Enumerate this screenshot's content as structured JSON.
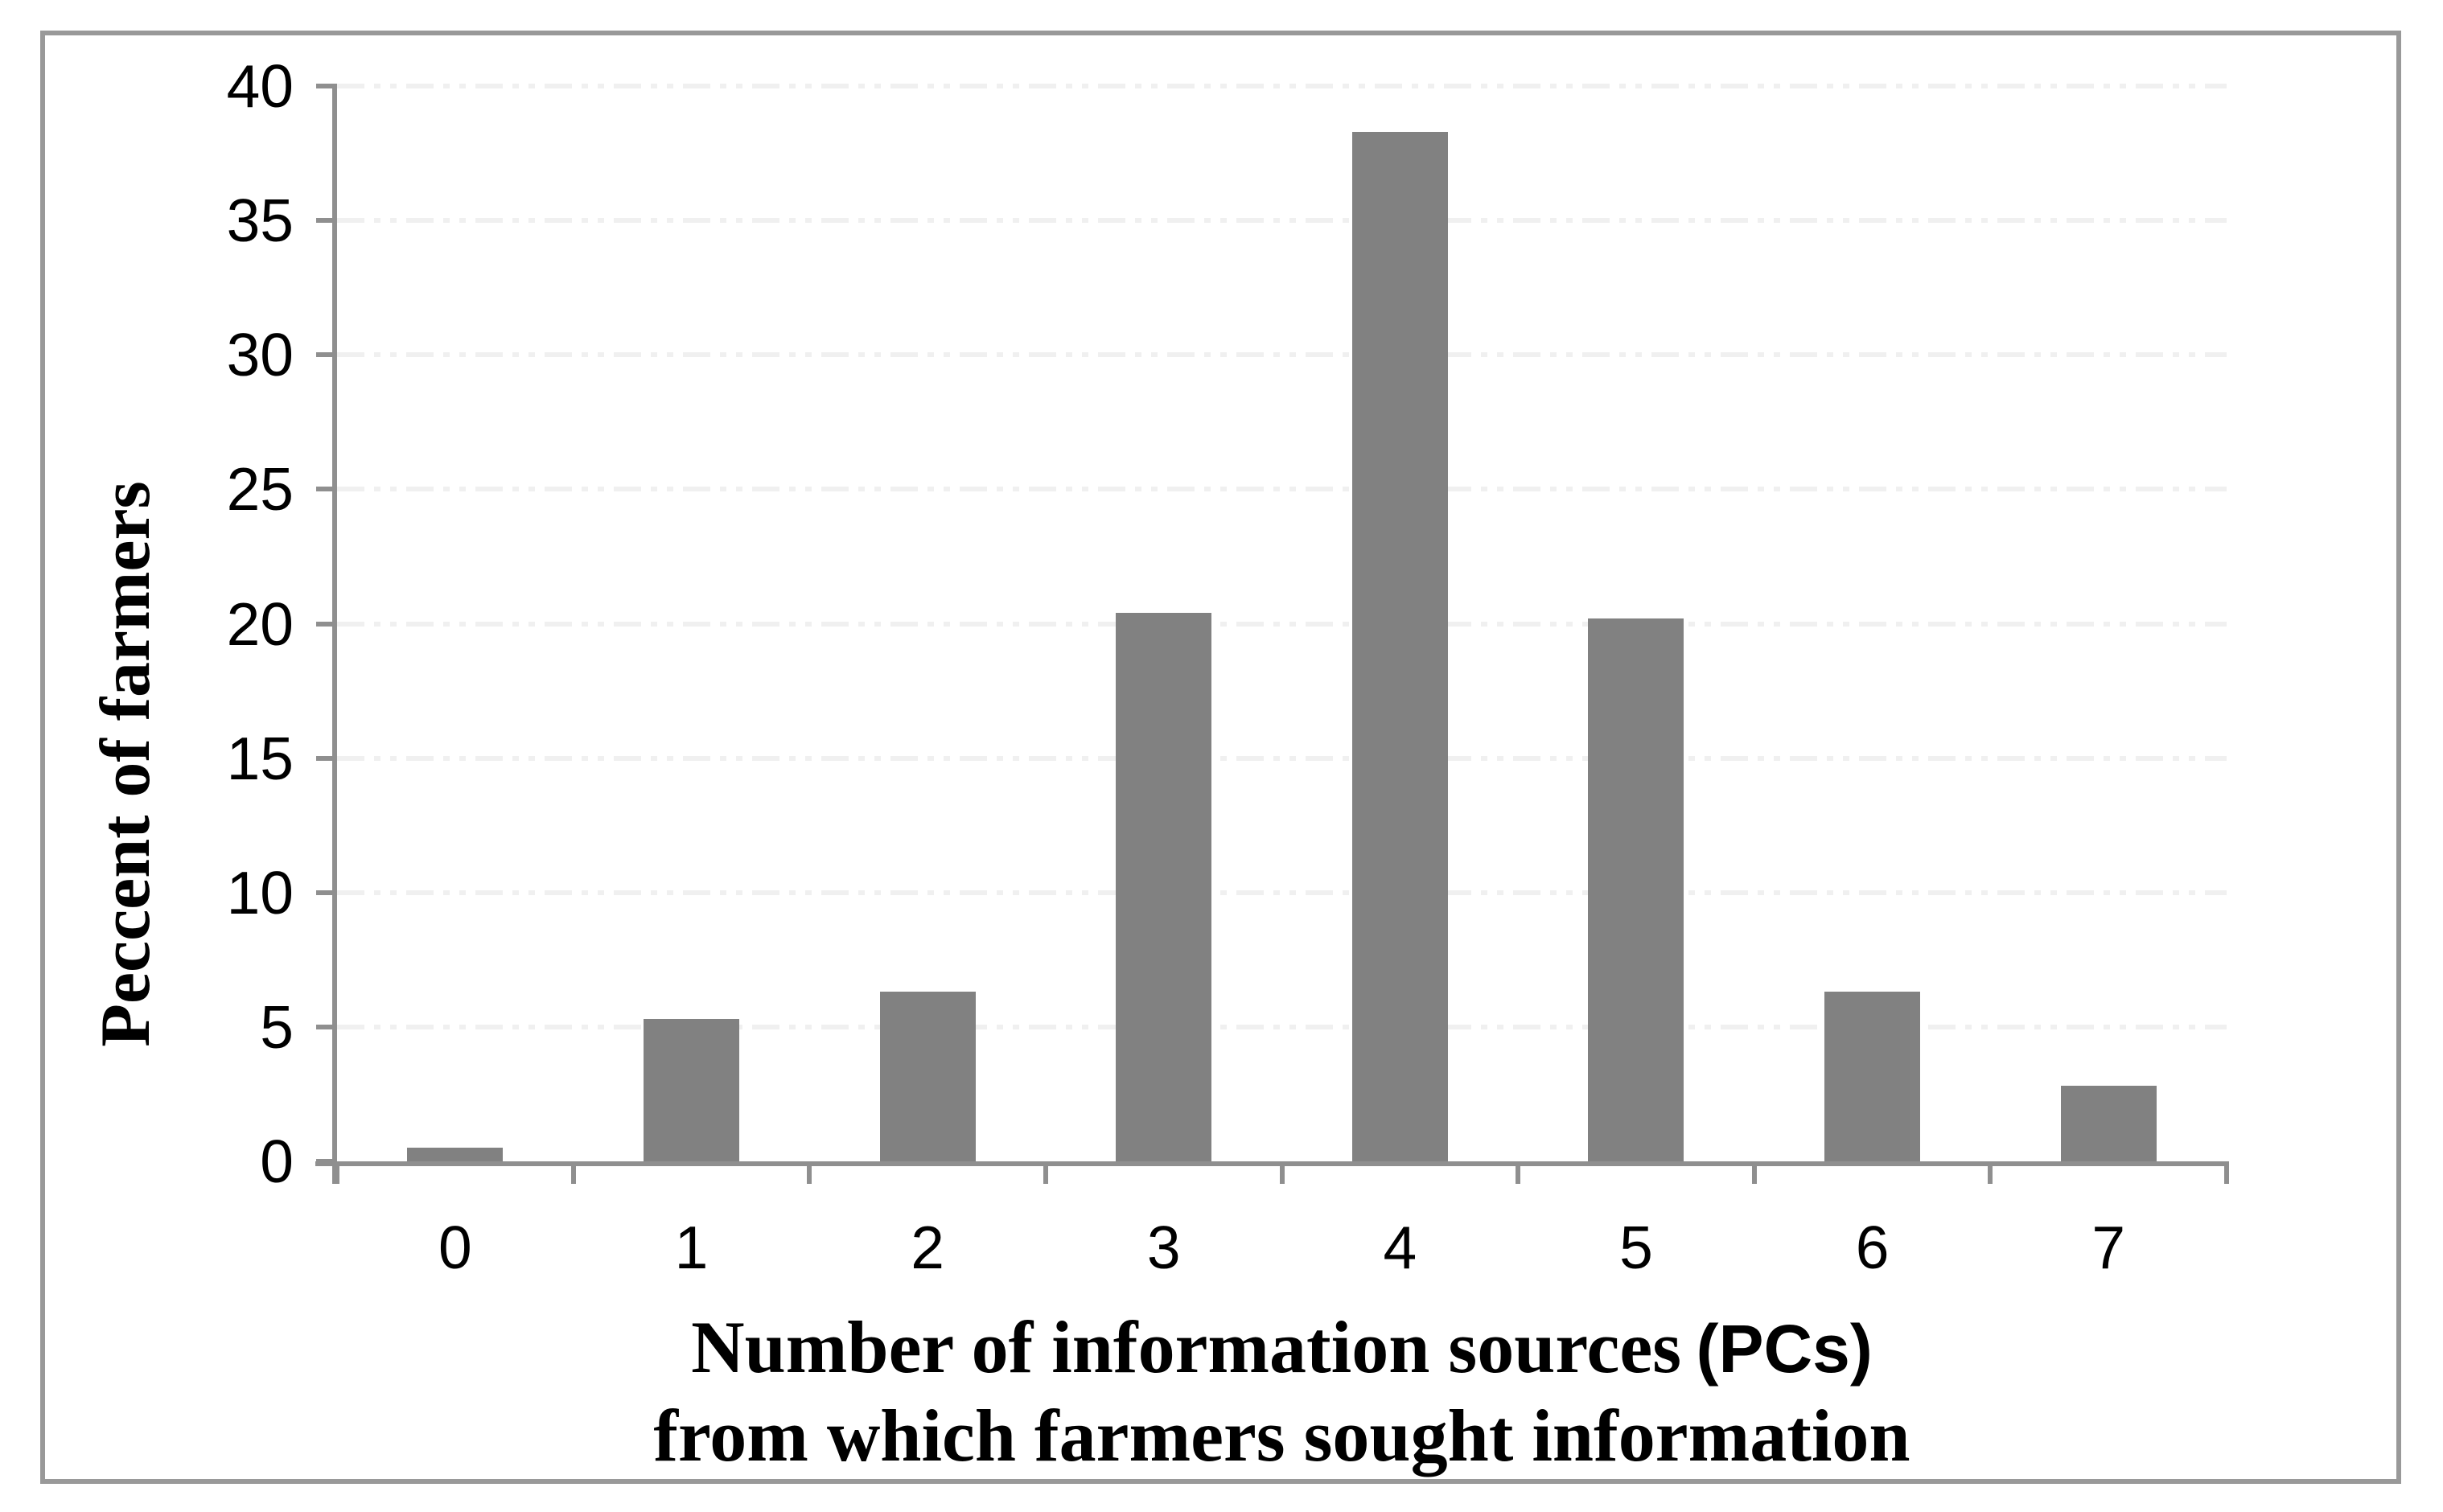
{
  "figure": {
    "background": "#ffffff",
    "frame_color": "#999999"
  },
  "chart_data": {
    "type": "bar",
    "categories": [
      "0",
      "1",
      "2",
      "3",
      "4",
      "5",
      "6",
      "7"
    ],
    "values": [
      0.5,
      5.3,
      6.3,
      20.4,
      38.3,
      20.2,
      6.3,
      2.8
    ],
    "xlabel_line1_main": "Number of information sources",
    "xlabel_line1_paren": "(PCs)",
    "xlabel_line2": "from which farmers sought information",
    "ylabel": "Peccent of farmers",
    "ylim": [
      0,
      40
    ],
    "ytick_values": [
      0,
      5,
      10,
      15,
      20,
      25,
      30,
      35,
      40
    ],
    "grid": "horizontal dashed lines every 5 units",
    "legend": "none",
    "bar_color": "#818181",
    "axis_color": "#8f8f8f",
    "gridline_color": "#f0f0f0",
    "text_color": "#000000"
  }
}
